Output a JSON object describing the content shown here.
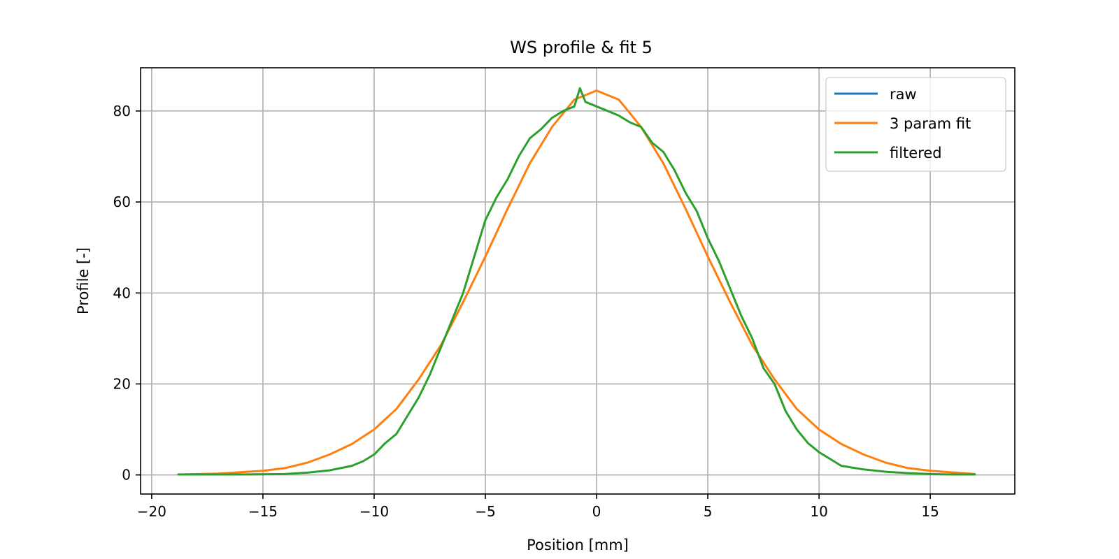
{
  "chart_data": {
    "type": "line",
    "title": "WS profile & fit 5",
    "xlabel": "Position [mm]",
    "ylabel": "Profile [-]",
    "xlim": [
      -20.5,
      18.8
    ],
    "ylim": [
      -4.2,
      89.5
    ],
    "xticks": [
      -20,
      -15,
      -10,
      -5,
      0,
      5,
      10,
      15
    ],
    "xtick_labels": [
      "−20",
      "−15",
      "−10",
      "−5",
      "0",
      "5",
      "10",
      "15"
    ],
    "yticks": [
      0,
      20,
      40,
      60,
      80
    ],
    "ytick_labels": [
      "0",
      "20",
      "40",
      "60",
      "80"
    ],
    "grid": true,
    "legend_position": "top-right",
    "series": [
      {
        "name": "raw",
        "color": "#1f77b4",
        "x": [],
        "y": []
      },
      {
        "name": "3 param fit",
        "color": "#ff7f0e",
        "x": [
          -18.8,
          -17,
          -15,
          -14,
          -13,
          -12,
          -11,
          -10,
          -9,
          -8,
          -7,
          -6,
          -5,
          -4,
          -3,
          -2,
          -1,
          0,
          1,
          2,
          3,
          4,
          5,
          6,
          7,
          8,
          9,
          10,
          11,
          12,
          13,
          14,
          15,
          17
        ],
        "y": [
          0.1,
          0.3,
          0.9,
          1.5,
          2.7,
          4.5,
          6.8,
          10.0,
          14.5,
          21.0,
          28.5,
          38.0,
          48.0,
          58.5,
          68.5,
          76.5,
          82.5,
          84.5,
          82.5,
          76.5,
          68.5,
          58.5,
          48.0,
          38.0,
          28.5,
          21.0,
          14.5,
          10.0,
          6.8,
          4.5,
          2.7,
          1.5,
          0.9,
          0.2
        ]
      },
      {
        "name": "filtered",
        "color": "#2ca02c",
        "x": [
          -18.8,
          -16,
          -14,
          -13,
          -12,
          -11,
          -10.5,
          -10,
          -9.5,
          -9,
          -8.5,
          -8,
          -7.5,
          -7,
          -6.5,
          -6,
          -5.5,
          -5,
          -4.5,
          -4,
          -3.5,
          -3,
          -2.5,
          -2,
          -1.5,
          -1,
          -0.75,
          -0.5,
          0,
          0.5,
          1,
          1.5,
          2,
          2.5,
          3,
          3.5,
          4,
          4.5,
          5,
          5.5,
          6,
          6.5,
          7,
          7.5,
          8,
          8.5,
          9,
          9.5,
          10,
          10.5,
          11,
          12,
          13,
          14,
          15,
          16,
          17
        ],
        "y": [
          0.1,
          0.1,
          0.2,
          0.5,
          1.0,
          2.0,
          3.0,
          4.5,
          7.0,
          9.0,
          13.0,
          17.0,
          22.0,
          28.0,
          34.0,
          40.0,
          48.0,
          56.0,
          61.0,
          65.0,
          70.0,
          74.0,
          76.0,
          78.5,
          80.0,
          81.0,
          85.0,
          82.0,
          81.0,
          80.0,
          79.0,
          77.5,
          76.5,
          73.0,
          71.0,
          67.0,
          62.0,
          58.0,
          52.0,
          47.0,
          41.0,
          35.0,
          30.0,
          23.5,
          20.0,
          14.0,
          10.0,
          7.0,
          5.0,
          3.5,
          2.0,
          1.2,
          0.7,
          0.4,
          0.2,
          0.1,
          0.1
        ]
      }
    ]
  }
}
